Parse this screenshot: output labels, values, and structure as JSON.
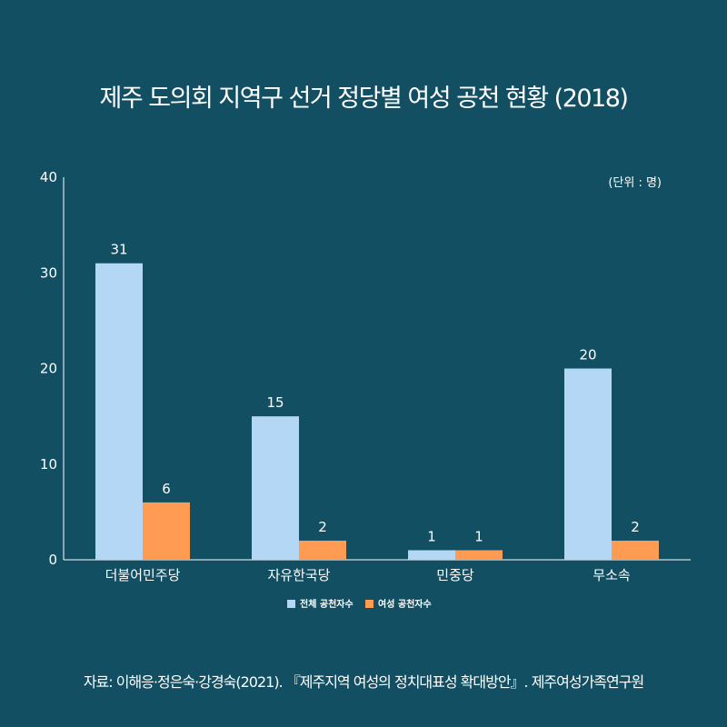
{
  "chart_data": {
    "type": "bar",
    "title": "제주 도의회 지역구 선거 정당별 여성 공천 현황 (2018)",
    "unit_note": "(단위 : 명)",
    "categories": [
      "더불어민주당",
      "자유한국당",
      "민중당",
      "무소속"
    ],
    "series": [
      {
        "name": "전체 공천자수",
        "values": [
          31,
          15,
          1,
          20
        ],
        "color": "#b3d7f5"
      },
      {
        "name": "여성 공천자수",
        "values": [
          6,
          2,
          1,
          2
        ],
        "color": "#ff9b52"
      }
    ],
    "ylim": [
      0,
      40
    ],
    "yticks": [
      0,
      10,
      20,
      30,
      40
    ],
    "grid": false,
    "legend_position": "bottom-center"
  },
  "source": "자료: 이해응·정은숙·강경숙(2021). 『제주지역 여성의 정치대표성 확대방안』. 제주여성가족연구원",
  "colors": {
    "background": "#134f63",
    "text": "#ffffff",
    "axis": "#ffffff"
  }
}
